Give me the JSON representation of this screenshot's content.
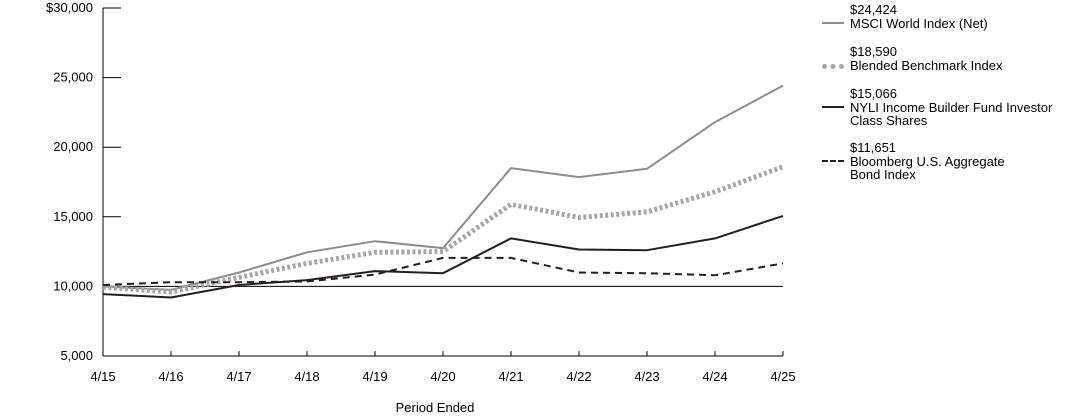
{
  "chart_data": {
    "type": "line",
    "xlabel": "Period Ended",
    "ylabel": "",
    "categories": [
      "4/15",
      "4/16",
      "4/17",
      "4/18",
      "4/19",
      "4/20",
      "4/21",
      "4/22",
      "4/23",
      "4/24",
      "4/25"
    ],
    "ylim": [
      5000,
      30000
    ],
    "yticks": [
      {
        "value": 5000,
        "label": "5,000"
      },
      {
        "value": 10000,
        "label": "10,000"
      },
      {
        "value": 15000,
        "label": "15,000"
      },
      {
        "value": 20000,
        "label": "20,000"
      },
      {
        "value": 25000,
        "label": "25,000"
      },
      {
        "value": 30000,
        "label": "$30,000"
      }
    ],
    "reference_line": 10000,
    "series": [
      {
        "name": "MSCI World Index (Net)",
        "end_label": "$24,424",
        "color": "#8c8c8c",
        "style": "solid",
        "values": [
          10000,
          9750,
          11000,
          12450,
          13250,
          12750,
          18500,
          17850,
          18450,
          21800,
          24424
        ]
      },
      {
        "name": "Blended Benchmark Index",
        "end_label": "$18,590",
        "color": "#a6a6a6",
        "style": "dotted-thick",
        "values": [
          9950,
          9600,
          10650,
          11650,
          12450,
          12500,
          15900,
          14950,
          15350,
          16800,
          18590
        ]
      },
      {
        "name": "NYLI Income Builder Fund Investor\nClass Shares",
        "end_label": "$15,066",
        "color": "#231f20",
        "style": "solid",
        "values": [
          9450,
          9200,
          10100,
          10450,
          11100,
          10950,
          13450,
          12650,
          12600,
          13450,
          15066
        ]
      },
      {
        "name": "Bloomberg  U.S. Aggregate\nBond Index",
        "end_label": "$11,651",
        "color": "#231f20",
        "style": "dashed",
        "values": [
          10100,
          10300,
          10300,
          10350,
          10850,
          12050,
          12050,
          11000,
          10950,
          10800,
          11651
        ]
      }
    ],
    "legend_position": "right"
  }
}
